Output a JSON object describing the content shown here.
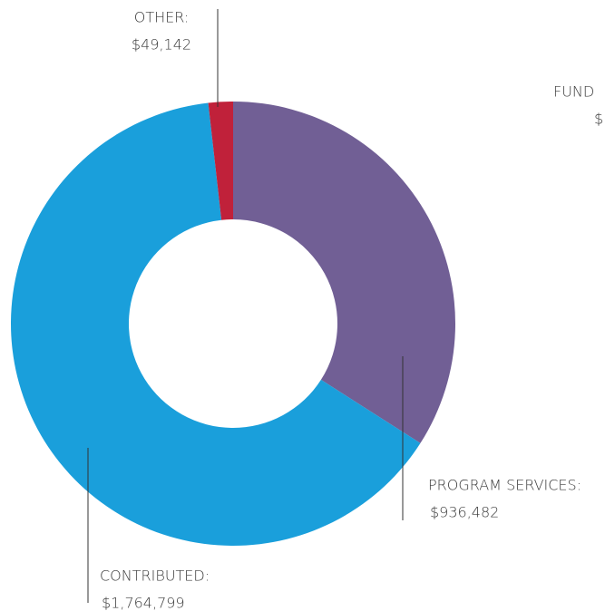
{
  "chart_data": {
    "type": "pie",
    "donut": true,
    "categories": [
      "PROGRAM SERVICES:",
      "CONTRIBUTED:",
      "OTHER:"
    ],
    "values": [
      936482,
      1764799,
      49142
    ],
    "value_labels": [
      "$936,482",
      "$1,764,799",
      "$49,142"
    ],
    "colors": [
      "#715f95",
      "#1a9fdb",
      "#c0213a"
    ],
    "annotations": [
      "FUND",
      "$"
    ]
  }
}
